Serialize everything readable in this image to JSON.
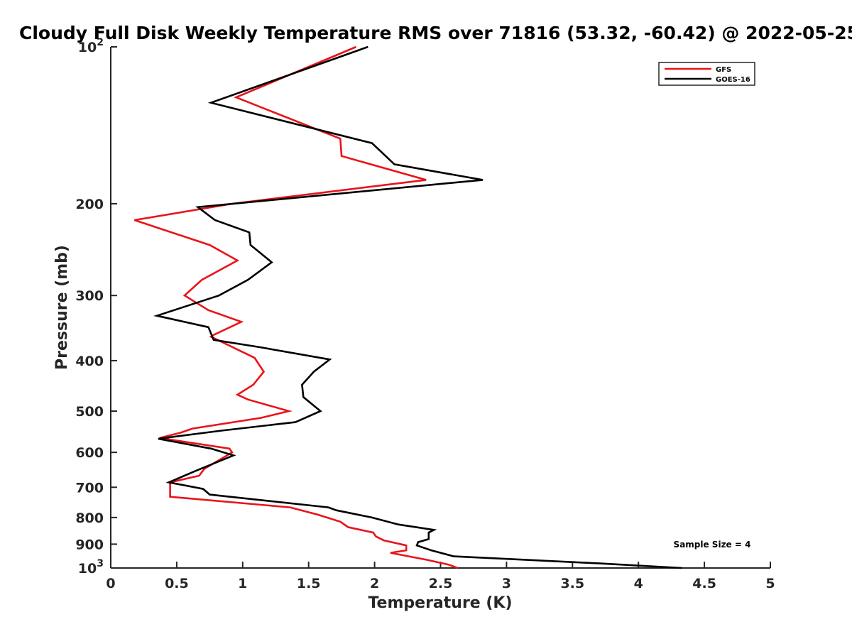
{
  "chart_data": {
    "type": "line",
    "title": "Cloudy Full Disk Weekly Temperature RMS over 71816 (53.32, -60.42) @ 2022-05-25",
    "xlabel": "Temperature (K)",
    "ylabel": "Pressure (mb)",
    "xlim": [
      0,
      5
    ],
    "ylim": [
      100,
      1000
    ],
    "y_scale": "log",
    "y_reversed": true,
    "grid": false,
    "legend_position": "top-right",
    "x_ticks": [
      0,
      0.5,
      1,
      1.5,
      2,
      2.5,
      3,
      3.5,
      4,
      4.5,
      5
    ],
    "x_tick_labels": [
      "0",
      "0.5",
      "1",
      "1.5",
      "2",
      "2.5",
      "3",
      "3.5",
      "4",
      "4.5",
      "5"
    ],
    "y_ticks": [
      {
        "value": 100,
        "base": "10",
        "exp": "2"
      },
      {
        "value": 200,
        "label": "200"
      },
      {
        "value": 300,
        "label": "300"
      },
      {
        "value": 400,
        "label": "400"
      },
      {
        "value": 500,
        "label": "500"
      },
      {
        "value": 600,
        "label": "600"
      },
      {
        "value": 700,
        "label": "700"
      },
      {
        "value": 800,
        "label": "800"
      },
      {
        "value": 900,
        "label": "900"
      },
      {
        "value": 1000,
        "base": "10",
        "exp": "3"
      }
    ],
    "series": [
      {
        "name": "GFS",
        "color": "#e8141a",
        "points": [
          [
            1.86,
            100
          ],
          [
            0.95,
            125
          ],
          [
            1.74,
            150
          ],
          [
            1.75,
            162
          ],
          [
            2.39,
            180
          ],
          [
            0.92,
            200
          ],
          [
            0.18,
            215
          ],
          [
            0.75,
            240
          ],
          [
            0.96,
            257
          ],
          [
            0.69,
            280
          ],
          [
            0.56,
            300
          ],
          [
            0.74,
            320
          ],
          [
            0.99,
            337
          ],
          [
            0.78,
            357
          ],
          [
            0.76,
            360
          ],
          [
            1.09,
            395
          ],
          [
            1.16,
            420
          ],
          [
            1.08,
            445
          ],
          [
            0.96,
            465
          ],
          [
            1.04,
            475
          ],
          [
            1.35,
            500
          ],
          [
            1.14,
            515
          ],
          [
            0.62,
            540
          ],
          [
            0.53,
            550
          ],
          [
            0.37,
            563
          ],
          [
            0.9,
            590
          ],
          [
            0.92,
            600
          ],
          [
            0.71,
            645
          ],
          [
            0.67,
            665
          ],
          [
            0.45,
            685
          ],
          [
            0.45,
            730
          ],
          [
            1.36,
            765
          ],
          [
            1.57,
            790
          ],
          [
            1.74,
            815
          ],
          [
            1.8,
            835
          ],
          [
            1.99,
            855
          ],
          [
            2.01,
            870
          ],
          [
            2.07,
            885
          ],
          [
            2.24,
            905
          ],
          [
            2.24,
            925
          ],
          [
            2.12,
            935
          ],
          [
            2.26,
            950
          ],
          [
            2.4,
            965
          ],
          [
            2.56,
            985
          ],
          [
            2.63,
            1000
          ]
        ]
      },
      {
        "name": "GOES-16",
        "color": "#000000",
        "points": [
          [
            1.95,
            100
          ],
          [
            0.76,
            128
          ],
          [
            1.98,
            153
          ],
          [
            2.15,
            168
          ],
          [
            2.82,
            180
          ],
          [
            0.66,
            203
          ],
          [
            0.79,
            215
          ],
          [
            1.05,
            227
          ],
          [
            1.06,
            240
          ],
          [
            1.22,
            259
          ],
          [
            1.04,
            280
          ],
          [
            0.82,
            300
          ],
          [
            0.35,
            328
          ],
          [
            0.74,
            345
          ],
          [
            0.78,
            365
          ],
          [
            1.13,
            377
          ],
          [
            1.66,
            398
          ],
          [
            1.54,
            420
          ],
          [
            1.45,
            445
          ],
          [
            1.46,
            470
          ],
          [
            1.59,
            500
          ],
          [
            1.4,
            525
          ],
          [
            0.84,
            545
          ],
          [
            0.36,
            565
          ],
          [
            0.76,
            590
          ],
          [
            0.93,
            608
          ],
          [
            0.65,
            650
          ],
          [
            0.44,
            685
          ],
          [
            0.7,
            705
          ],
          [
            0.75,
            723
          ],
          [
            1.65,
            765
          ],
          [
            1.71,
            775
          ],
          [
            1.98,
            800
          ],
          [
            2.18,
            825
          ],
          [
            2.45,
            845
          ],
          [
            2.41,
            855
          ],
          [
            2.41,
            880
          ],
          [
            2.33,
            892
          ],
          [
            2.32,
            905
          ],
          [
            2.43,
            925
          ],
          [
            2.6,
            950
          ],
          [
            3.71,
            980
          ],
          [
            4.33,
            1000
          ]
        ]
      }
    ],
    "annotation": "Sample Size = 4"
  }
}
